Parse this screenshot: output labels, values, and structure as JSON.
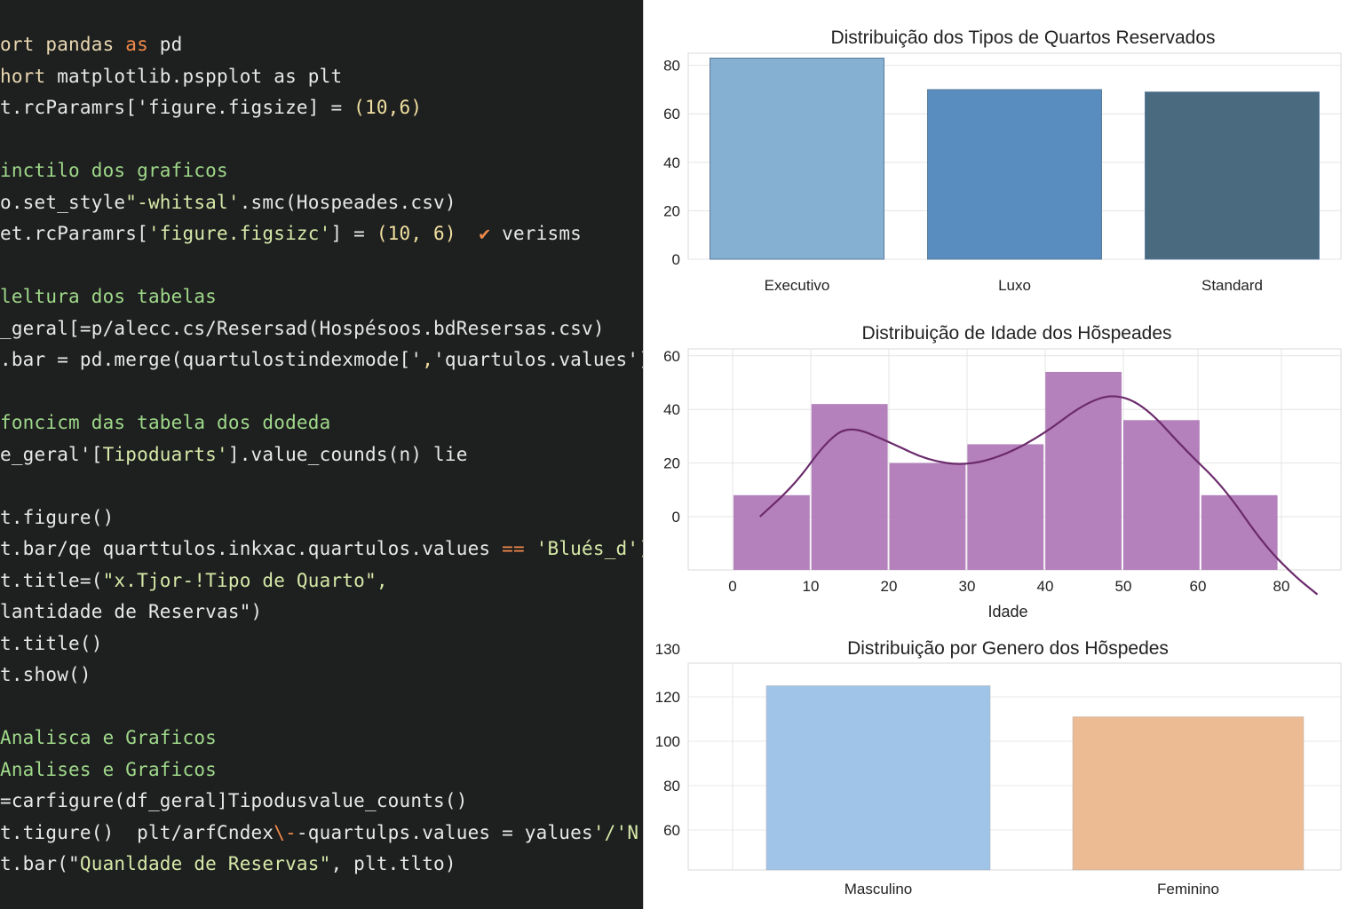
{
  "editor": {
    "lines": [
      [
        {
          "t": "ort pandas ",
          "c": "t-kw"
        },
        {
          "t": "as",
          "c": "t-err"
        },
        {
          "t": " pd",
          "c": ""
        }
      ],
      [
        {
          "t": "hort ",
          "c": "t-kw"
        },
        {
          "t": "matplotlib.pspplot as plt",
          "c": ""
        }
      ],
      [
        {
          "t": "t.rcParamrs['figure.figsize] = ",
          "c": ""
        },
        {
          "t": "(10,6)",
          "c": "t-num"
        }
      ],
      [],
      [
        {
          "t": "inctilo dos graficos",
          "c": "t-com"
        }
      ],
      [
        {
          "t": "o.set_style",
          "c": ""
        },
        {
          "t": "\"-whitsal'",
          "c": "t-str"
        },
        {
          "t": ".smc(Hospeades.csv)",
          "c": ""
        }
      ],
      [
        {
          "t": "et.rcParamrs[",
          "c": ""
        },
        {
          "t": "'figure.figsizc'",
          "c": "t-str"
        },
        {
          "t": "] = ",
          "c": ""
        },
        {
          "t": "(10, 6)",
          "c": "t-num"
        },
        {
          "t": "  ✔ ",
          "c": "t-err"
        },
        {
          "t": "verisms",
          "c": ""
        }
      ],
      [],
      [
        {
          "t": "leltura dos tabelas",
          "c": "t-com"
        }
      ],
      [
        {
          "t": "_geral[=p/alecc.cs/Resersad(Hospésoos.bdResersas.csv)",
          "c": ""
        }
      ],
      [
        {
          "t": ".bar = pd.merge(quartulostindexmode['",
          "c": ""
        },
        {
          "t": ",",
          "c": "t-num"
        },
        {
          "t": "'quartulos.values')",
          "c": ""
        }
      ],
      [],
      [
        {
          "t": "foncicm das tabela dos dodeda",
          "c": "t-com"
        }
      ],
      [
        {
          "t": "e_geral'[",
          "c": ""
        },
        {
          "t": "Tipoduarts'",
          "c": "t-str"
        },
        {
          "t": "].value_counds(n) lie",
          "c": ""
        }
      ],
      [],
      [
        {
          "t": "t.figure()",
          "c": ""
        }
      ],
      [
        {
          "t": "t.bar/qe quarttulos.inkxac.quartulos.values",
          "c": ""
        },
        {
          "t": " == ",
          "c": "t-err"
        },
        {
          "t": "'Blués_d')",
          "c": "t-str"
        }
      ],
      [
        {
          "t": "t.title=(",
          "c": ""
        },
        {
          "t": "\"x.Tjor-!Tipo de Quarto\",",
          "c": "t-str"
        }
      ],
      [
        {
          "t": "lantidade de Reservas\")",
          "c": ""
        }
      ],
      [
        {
          "t": "t.title()",
          "c": ""
        }
      ],
      [
        {
          "t": "t.show()",
          "c": ""
        }
      ],
      [],
      [
        {
          "t": "Analisca e Graficos",
          "c": "t-com"
        }
      ],
      [
        {
          "t": "Analises e Graficos",
          "c": "t-com"
        }
      ],
      [
        {
          "t": "=carfigure(df_geral]",
          "c": ""
        },
        {
          "t": "Tipodusvalue_counts()",
          "c": ""
        }
      ],
      [
        {
          "t": "t.tigure()  plt/arfCndex",
          "c": ""
        },
        {
          "t": "\\-",
          "c": "t-err"
        },
        {
          "t": "-quartulps.values = yalues",
          "c": ""
        },
        {
          "t": "'/'N'",
          "c": "t-str"
        },
        {
          "t": ")",
          "c": ""
        }
      ],
      [
        {
          "t": "t.bar(\"",
          "c": ""
        },
        {
          "t": "Quanldade de Reservas\"",
          "c": "t-str"
        },
        {
          "t": ", plt.tlto)",
          "c": ""
        }
      ]
    ]
  },
  "chart_data": [
    {
      "type": "bar",
      "title": "Distribuição dos Tipos de Quartos Reservados",
      "categories": [
        "Executivo",
        "Luxo",
        "Standard"
      ],
      "values": [
        83,
        70,
        69
      ],
      "colors": [
        "#86b0d2",
        "#5a8dbf",
        "#4a6a80"
      ],
      "ylim": [
        0,
        85
      ],
      "yticks": [
        0,
        20,
        40,
        60,
        80
      ],
      "xlabel": "",
      "ylabel": "",
      "grid": true
    },
    {
      "type": "histogram",
      "title": "Distribuição de Idade dos Hõspeades",
      "xlabel": "Idade",
      "ylabel": "",
      "bins": [
        {
          "x0": 0,
          "x1": 10,
          "value": 8
        },
        {
          "x0": 10,
          "x1": 20,
          "value": 42
        },
        {
          "x0": 20,
          "x1": 30,
          "value": 20
        },
        {
          "x0": 30,
          "x1": 40,
          "value": 27
        },
        {
          "x0": 40,
          "x1": 50,
          "value": 54
        },
        {
          "x0": 50,
          "x1": 60,
          "value": 36
        },
        {
          "x0": 60,
          "x1": 70,
          "value": 8
        }
      ],
      "kde": [
        [
          3.5,
          0
        ],
        [
          8,
          12
        ],
        [
          12,
          28
        ],
        [
          15,
          34
        ],
        [
          20,
          28
        ],
        [
          25,
          21
        ],
        [
          30,
          19
        ],
        [
          35,
          23
        ],
        [
          40,
          31
        ],
        [
          45,
          42
        ],
        [
          49,
          46
        ],
        [
          53,
          41
        ],
        [
          58,
          25
        ],
        [
          63,
          11
        ],
        [
          68,
          -10
        ],
        [
          72,
          -22
        ],
        [
          75,
          -29
        ]
      ],
      "xticks": [
        0,
        10,
        20,
        30,
        40,
        50,
        60,
        80
      ],
      "yticks": [
        0,
        20,
        40,
        60
      ],
      "color": "#b07ab8",
      "line_color": "#6b2a6b",
      "grid": true
    },
    {
      "type": "bar",
      "title": "Distribuição por Genero dos Hõspedes",
      "categories": [
        "Masculino",
        "Feminino"
      ],
      "values": [
        125,
        111
      ],
      "colors": [
        "#a0c3e8",
        "#edbb93"
      ],
      "ylim": [
        50,
        133
      ],
      "yticks": [
        60,
        80,
        100,
        120,
        130
      ],
      "xlabel": "",
      "ylabel": "",
      "grid": true
    }
  ]
}
